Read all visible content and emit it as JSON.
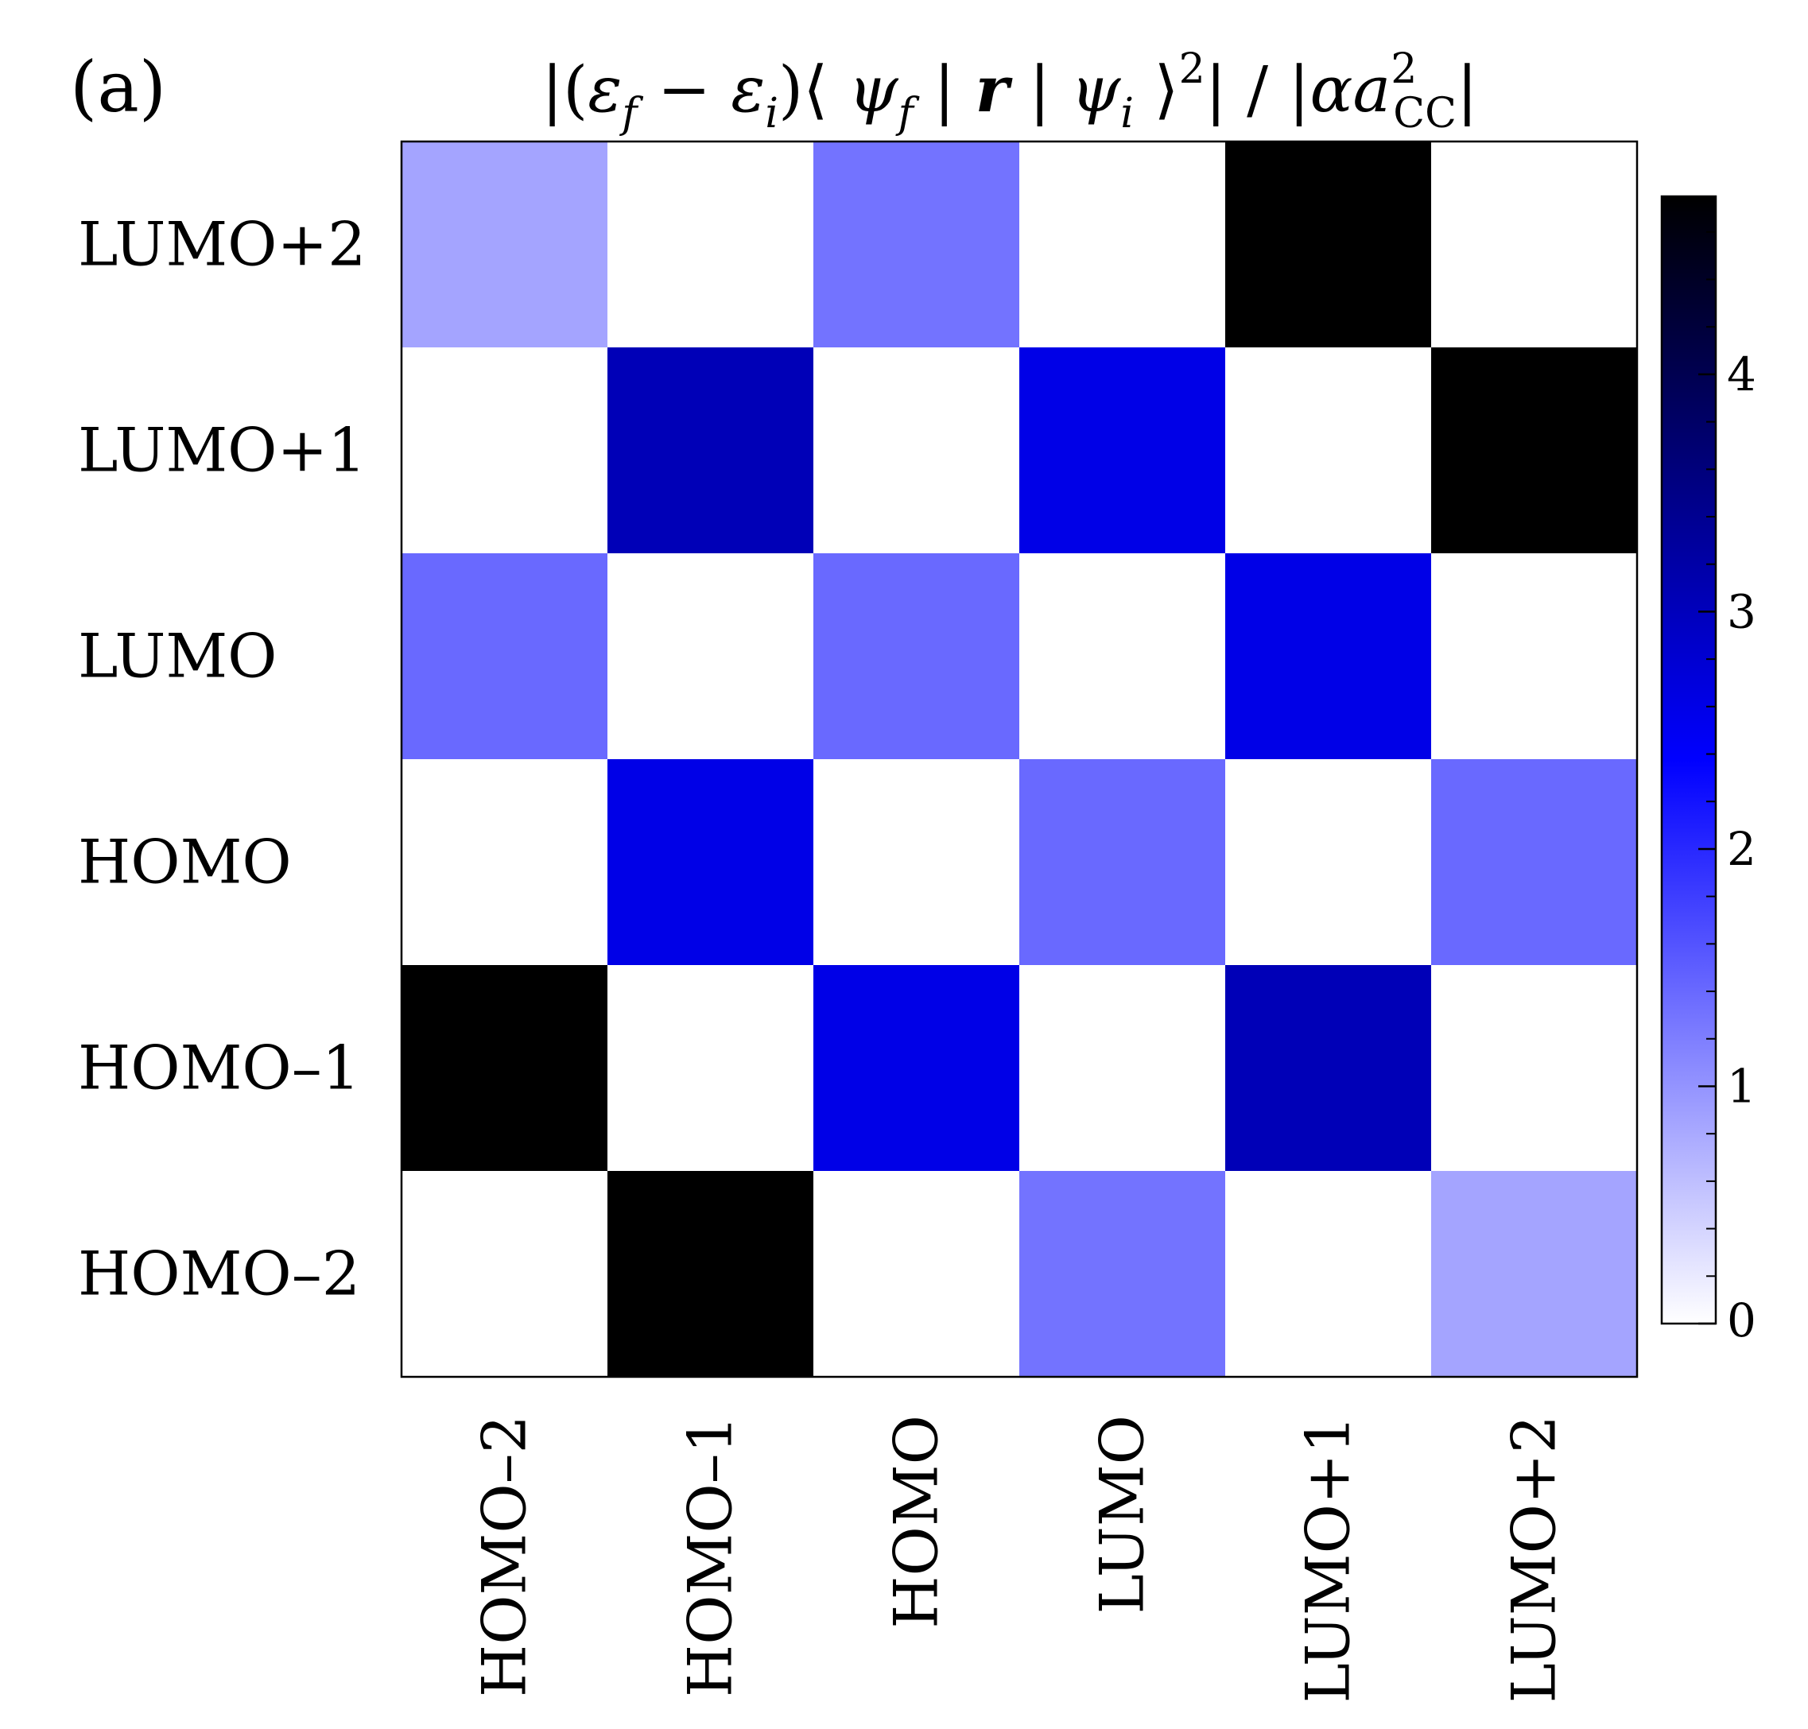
{
  "chart_data": {
    "type": "heatmap",
    "panel_label": "(a)",
    "title": "|(ε_f − ε_i)⟨ ψ_f | r | ψ_i ⟩²| / |α a²_CC|",
    "title_parts": {
      "bar_open": "|(",
      "eps": "ε",
      "sub_f": "f",
      "minus": " − ",
      "sub_i": "i",
      "close_paren_bra": ")⟨ ",
      "psi": "ψ",
      "bar_mid": " | ",
      "r": "r",
      "ket_close": " ⟩",
      "sup_2": "2",
      "slash": "| / |",
      "alpha": "α",
      "a": "a",
      "sub_cc": "CC",
      "bar_close": "|"
    },
    "xlabel": "",
    "ylabel": "",
    "x_categories": [
      "HOMO–2",
      "HOMO–1",
      "HOMO",
      "LUMO",
      "LUMO+1",
      "LUMO+2"
    ],
    "y_categories": [
      "LUMO+2",
      "LUMO+1",
      "LUMO",
      "HOMO",
      "HOMO–1",
      "HOMO–2"
    ],
    "values": [
      [
        0.85,
        0,
        1.3,
        0,
        4.75,
        0
      ],
      [
        0,
        3.05,
        0,
        2.6,
        0,
        4.75
      ],
      [
        1.4,
        0,
        1.4,
        0,
        2.6,
        0
      ],
      [
        0,
        2.6,
        0,
        1.4,
        0,
        1.4
      ],
      [
        4.75,
        0,
        2.6,
        0,
        3.05,
        0
      ],
      [
        0,
        4.75,
        0,
        1.3,
        0,
        0.85
      ]
    ],
    "colorbar": {
      "min": 0,
      "max": 4.75,
      "ticks": [
        0,
        1,
        2,
        3,
        4
      ],
      "tick_labels": [
        "0",
        "1",
        "2",
        "3",
        "4"
      ],
      "colors": [
        {
          "value": 0,
          "color": "#ffffff"
        },
        {
          "value": 2.375,
          "color": "#0000ff"
        },
        {
          "value": 4.75,
          "color": "#000000"
        }
      ]
    },
    "grid": false
  }
}
